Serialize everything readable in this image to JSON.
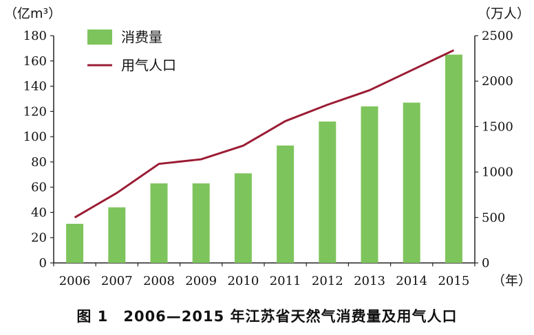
{
  "caption": "图 1　2006—2015 年江苏省天然气消费量及用气人口",
  "chart_data": {
    "type": "bar",
    "categories": [
      "2006",
      "2007",
      "2008",
      "2009",
      "2010",
      "2011",
      "2012",
      "2013",
      "2014",
      "2015"
    ],
    "series": [
      {
        "name": "消费量",
        "kind": "bar",
        "axis": "left",
        "color": "#7ec45c",
        "values": [
          31,
          44,
          63,
          63,
          71,
          93,
          112,
          124,
          127,
          165
        ]
      },
      {
        "name": "用气人口",
        "kind": "line",
        "axis": "right",
        "color": "#9b1c34",
        "values": [
          500,
          770,
          1090,
          1140,
          1290,
          1560,
          1740,
          1900,
          2120,
          2340
        ]
      }
    ],
    "y_left": {
      "unit": "（亿m³）",
      "range": [
        0,
        180
      ],
      "ticks": [
        0,
        20,
        40,
        60,
        80,
        100,
        120,
        140,
        160,
        180
      ]
    },
    "y_right": {
      "unit": "（万人）",
      "range": [
        0,
        2500
      ],
      "ticks": [
        0,
        500,
        1000,
        1500,
        2000,
        2500
      ]
    },
    "x_unit": "（年）",
    "legend_position": "top-left",
    "grid": false
  }
}
